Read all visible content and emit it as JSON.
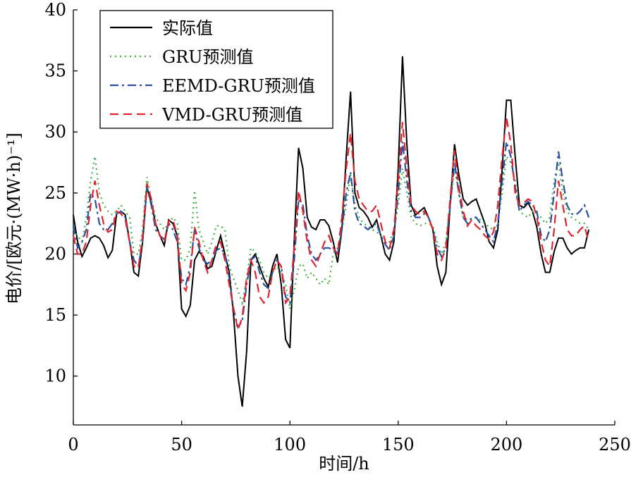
{
  "chart_data": {
    "type": "line",
    "xlabel": "时间/h",
    "ylabel": "电价/[欧元·(MW·h)⁻¹]",
    "xlim": [
      0,
      250
    ],
    "xticks": [
      0,
      50,
      100,
      150,
      200,
      250
    ],
    "ylim": [
      6,
      40
    ],
    "yticks": [
      10,
      15,
      20,
      25,
      30,
      35,
      40
    ],
    "legend": "upper left",
    "x": [
      0,
      2,
      4,
      6,
      8,
      10,
      12,
      14,
      16,
      18,
      20,
      22,
      24,
      26,
      28,
      30,
      32,
      34,
      36,
      38,
      40,
      42,
      44,
      46,
      48,
      50,
      52,
      54,
      56,
      58,
      60,
      62,
      64,
      66,
      68,
      70,
      72,
      74,
      76,
      78,
      80,
      82,
      84,
      86,
      88,
      90,
      92,
      94,
      96,
      98,
      100,
      102,
      104,
      106,
      108,
      110,
      112,
      114,
      116,
      118,
      120,
      122,
      124,
      126,
      128,
      130,
      132,
      134,
      136,
      138,
      140,
      142,
      144,
      146,
      148,
      150,
      152,
      154,
      156,
      158,
      160,
      162,
      164,
      166,
      168,
      170,
      172,
      174,
      176,
      178,
      180,
      182,
      184,
      186,
      188,
      190,
      192,
      194,
      196,
      198,
      200,
      202,
      204,
      206,
      208,
      210,
      212,
      214,
      216,
      218,
      220,
      222,
      224,
      226,
      228,
      230,
      232,
      234,
      236,
      238
    ],
    "series": [
      {
        "name": "实际值",
        "color": "#000000",
        "dash": "solid",
        "values": [
          23.2,
          21,
          19.8,
          20.5,
          21.3,
          21.5,
          21.3,
          20.7,
          19.7,
          20.3,
          23.3,
          23.5,
          23.2,
          21,
          18.5,
          18.2,
          21,
          25.5,
          24.2,
          22.5,
          21.5,
          20.7,
          22.8,
          22.5,
          21.5,
          15.5,
          14.9,
          15.8,
          19.5,
          20.2,
          19.8,
          18.8,
          19,
          20.3,
          21.5,
          20,
          18.5,
          15,
          10,
          7.5,
          12,
          19.5,
          20,
          19,
          18,
          17.3,
          19,
          20,
          17.5,
          13,
          12.3,
          21,
          28.7,
          27,
          23,
          22.2,
          22,
          22.8,
          22.8,
          22.3,
          21,
          19.3,
          22,
          28,
          33.3,
          25,
          23.8,
          23.5,
          23,
          22.2,
          22.8,
          21.5,
          20,
          19.5,
          21,
          27,
          36.2,
          29,
          24,
          23.2,
          23.5,
          23.8,
          23,
          22,
          19,
          17.5,
          18.5,
          24,
          29,
          26.5,
          24.5,
          24,
          24.3,
          24.5,
          23.5,
          22.5,
          21,
          20.5,
          22,
          27,
          32.6,
          32.6,
          28,
          24,
          23.8,
          24.2,
          23.5,
          22.2,
          20,
          18.5,
          18.5,
          20.2,
          21.3,
          21.3,
          20.5,
          20,
          20.3,
          20.5,
          20.5,
          22
        ]
      },
      {
        "name": "GRU预测值",
        "color": "#3cb043",
        "dash": "dotted",
        "values": [
          22,
          21.5,
          21,
          23,
          26,
          28,
          25,
          24,
          23.5,
          23.2,
          23.5,
          24,
          23.5,
          23,
          20,
          20,
          22,
          26.3,
          24.5,
          23,
          22.5,
          22,
          22.5,
          23,
          22.5,
          19.5,
          19.5,
          20.5,
          25.2,
          22,
          21,
          20,
          21,
          22.3,
          22.3,
          22,
          19,
          18,
          17,
          16,
          18,
          20.5,
          20.2,
          19.5,
          18.5,
          18,
          18.5,
          19,
          18.5,
          17.5,
          15.5,
          17,
          19,
          19.2,
          18,
          18.5,
          18,
          17.5,
          18,
          17.5,
          20,
          20.5,
          22,
          24,
          26.5,
          24,
          23,
          22.5,
          22.3,
          22,
          21.8,
          21.5,
          21.2,
          21,
          22,
          24,
          27,
          25,
          23,
          22.5,
          22.3,
          22.5,
          22.5,
          22.3,
          21,
          20,
          21,
          24,
          27,
          25,
          23,
          22.8,
          22.8,
          23,
          22.8,
          22.5,
          22.2,
          22,
          22.5,
          25,
          28,
          27.5,
          26,
          23.5,
          23.2,
          23,
          23.5,
          23.3,
          23,
          22.5,
          23,
          26,
          27.5,
          25,
          23.5,
          23,
          22.8,
          22.5,
          22.5,
          22
        ]
      },
      {
        "name": "EEMD-GRU预测值",
        "color": "#2b4fa0",
        "dash": "dashdot",
        "values": [
          22.3,
          20.5,
          21,
          22,
          25,
          24.5,
          22.5,
          22,
          22,
          22.5,
          23.3,
          23.5,
          23,
          21,
          19.5,
          19,
          21,
          25.5,
          24,
          22,
          21.5,
          21.2,
          22.5,
          22,
          21,
          18,
          17.5,
          19,
          22,
          20.5,
          19.5,
          19.2,
          19.5,
          20.3,
          20.5,
          20,
          18,
          15.5,
          14,
          14.5,
          17.5,
          19.5,
          19.8,
          18.5,
          17.5,
          17.2,
          18.5,
          19.5,
          19,
          16.5,
          16,
          19.5,
          24.5,
          24,
          21.5,
          20,
          19.5,
          20,
          20.5,
          20.5,
          20.3,
          20,
          22,
          25,
          26.7,
          23.5,
          22.5,
          22.3,
          22,
          22.3,
          22.5,
          21.5,
          20.8,
          20.3,
          21.5,
          25,
          29.2,
          26,
          23.5,
          23,
          23,
          23.3,
          23,
          22,
          20.5,
          19.8,
          20.5,
          24,
          27.5,
          25,
          23,
          22.5,
          23,
          23,
          22.5,
          22,
          21.5,
          21,
          22.5,
          26,
          29.2,
          28,
          25.5,
          23.5,
          24,
          24.3,
          24,
          23.5,
          21.5,
          21,
          22,
          25,
          28.4,
          26,
          24,
          23.3,
          23.2,
          23.5,
          24,
          23
        ]
      },
      {
        "name": "VMD-GRU预测值",
        "color": "#e0242e",
        "dash": "dashed",
        "values": [
          21.5,
          20,
          20,
          21,
          24,
          26,
          24,
          22.5,
          21.8,
          22,
          23.5,
          23.3,
          22.8,
          21,
          19,
          18.8,
          21.5,
          25.8,
          24.5,
          22.5,
          21.5,
          21,
          22.7,
          22.8,
          21.5,
          17.5,
          17,
          18.5,
          22.2,
          21,
          19.5,
          18.5,
          19.5,
          20.8,
          21,
          19.5,
          17.5,
          15.5,
          13.8,
          14.8,
          18,
          19.5,
          18.5,
          16.5,
          16,
          16.5,
          18.5,
          19.5,
          19,
          16,
          16.5,
          20.5,
          25.2,
          23.5,
          21,
          19.5,
          19,
          20,
          21,
          21.5,
          20.5,
          20,
          23,
          27,
          29.9,
          26,
          24.5,
          24,
          23.5,
          23.5,
          24,
          22.5,
          21,
          20.5,
          22,
          26,
          30.8,
          27,
          24,
          23.5,
          23.2,
          23.5,
          23,
          22,
          20,
          19.5,
          20.5,
          24.5,
          28.5,
          25.5,
          23.5,
          22.3,
          22.8,
          22.3,
          22,
          21.5,
          21.2,
          21.8,
          24,
          28,
          31.2,
          29,
          25,
          24,
          24.2,
          24.5,
          24.3,
          23,
          21,
          19.5,
          19,
          22,
          26,
          24,
          22,
          21.5,
          21.5,
          22,
          22.3,
          21
        ]
      }
    ]
  }
}
